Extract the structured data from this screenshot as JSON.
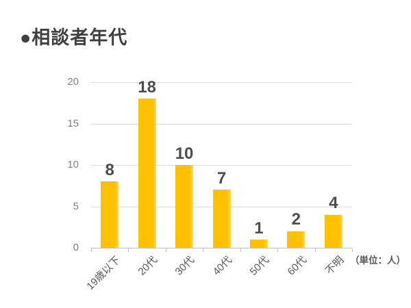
{
  "title": "●相談者年代",
  "unit_note": "（単位：人）",
  "chart_data": {
    "type": "bar",
    "title": "相談者年代",
    "categories": [
      "19歳以下",
      "20代",
      "30代",
      "40代",
      "50代",
      "60代",
      "不明"
    ],
    "values": [
      8,
      18,
      10,
      7,
      1,
      2,
      4
    ],
    "y_ticks": [
      0,
      5,
      10,
      15,
      20
    ],
    "ylim": [
      0,
      20
    ],
    "xlabel": "",
    "ylabel": "",
    "unit_label": "（単位：人）",
    "grid": true,
    "legend": "none",
    "data_labels_shown": true,
    "x_label_rotation_deg": -45,
    "colors": {
      "bar": "#FFC000",
      "bar_edge_highlight": "#FFD75E",
      "gridline": "#D9D9D9",
      "axis_line": "#BFBFBF",
      "y_tick_label": "#7F7F7F",
      "x_tick_label": "#595959",
      "data_label": "#4D4D4D",
      "title": "#3F3F3F",
      "background": "#FFFFFF"
    }
  }
}
